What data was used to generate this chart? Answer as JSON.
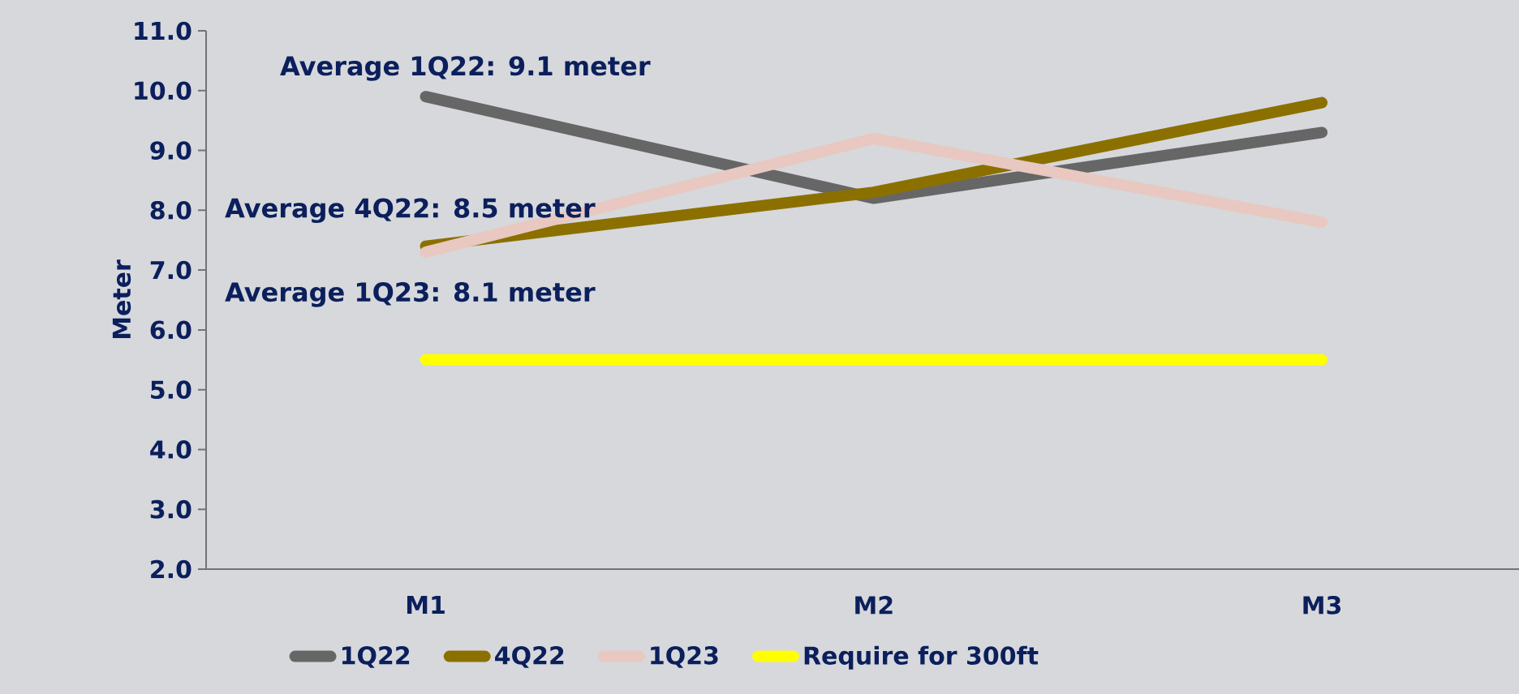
{
  "chart_data": {
    "type": "line",
    "ylabel": "Meter",
    "categories": [
      "M1",
      "M2",
      "M3"
    ],
    "series": [
      {
        "name": "1Q22",
        "color": "#666666",
        "values": [
          9.9,
          8.2,
          9.3
        ]
      },
      {
        "name": "4Q22",
        "color": "#8b7000",
        "values": [
          7.4,
          8.3,
          9.8
        ]
      },
      {
        "name": "1Q23",
        "color": "#e8c8c0",
        "values": [
          7.3,
          9.2,
          7.8
        ]
      },
      {
        "name": "Require for 300ft",
        "color": "#ffff00",
        "values": [
          5.5,
          5.5,
          5.5
        ]
      }
    ],
    "annotations": [
      "Average 1Q22: 9.1 meter",
      "Average 4Q22: 8.5 meter",
      "Average 1Q23: 8.1 meter"
    ],
    "ylim": [
      2.0,
      11.0
    ],
    "yticks": [
      {
        "value": 2,
        "label": "2.0"
      },
      {
        "value": 3,
        "label": "3.0"
      },
      {
        "value": 4,
        "label": "4.0"
      },
      {
        "value": 5,
        "label": "5.0"
      },
      {
        "value": 6,
        "label": "6.0"
      },
      {
        "value": 7,
        "label": "7.0"
      },
      {
        "value": 8,
        "label": "8.0"
      },
      {
        "value": 9,
        "label": "9.0"
      },
      {
        "value": 10,
        "label": "10.0"
      },
      {
        "value": 11,
        "label": "11.0"
      }
    ],
    "legend": "bottom",
    "marker": "none",
    "line_style": "solid"
  }
}
